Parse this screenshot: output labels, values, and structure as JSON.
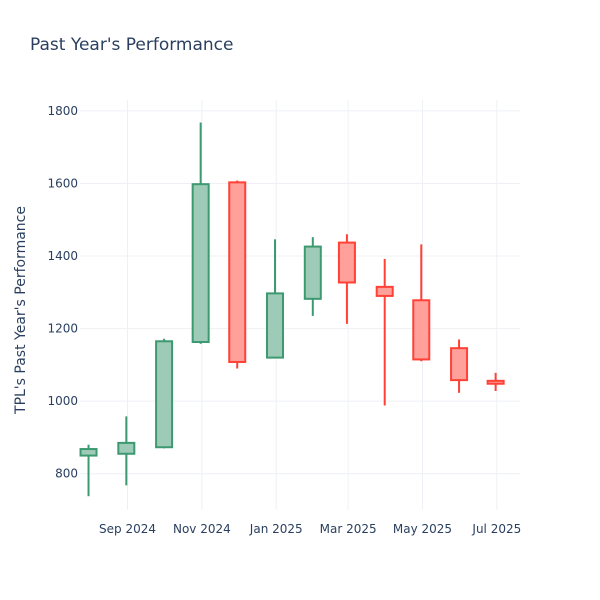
{
  "chart_data": {
    "type": "candlestick",
    "title": "Past Year's Performance",
    "xlabel": "",
    "ylabel": "TPL's Past Year's Performance",
    "ylim": [
      700,
      1830
    ],
    "yticks": [
      800,
      1000,
      1200,
      1400,
      1600,
      1800
    ],
    "xticks": [
      {
        "date": "2024-09-01",
        "label": "Sep 2024"
      },
      {
        "date": "2024-11-01",
        "label": "Nov 2024"
      },
      {
        "date": "2025-01-01",
        "label": "Jan 2025"
      },
      {
        "date": "2025-03-01",
        "label": "Mar 2025"
      },
      {
        "date": "2025-05-01",
        "label": "May 2025"
      },
      {
        "date": "2025-07-01",
        "label": "Jul 2025"
      }
    ],
    "xlim": [
      "2024-07-24",
      "2025-07-20"
    ],
    "grid": true,
    "increasing_color": "#3d9970",
    "increasing_fill": "#9ecbb7",
    "decreasing_color": "#ff4136",
    "decreasing_fill": "#ffa09b",
    "candles": [
      {
        "date": "2024-07-31",
        "open": 850,
        "high": 880,
        "low": 738,
        "close": 868
      },
      {
        "date": "2024-08-31",
        "open": 855,
        "high": 958,
        "low": 768,
        "close": 885
      },
      {
        "date": "2024-10-01",
        "open": 873,
        "high": 1172,
        "low": 870,
        "close": 1165
      },
      {
        "date": "2024-10-31",
        "open": 1163,
        "high": 1768,
        "low": 1158,
        "close": 1598
      },
      {
        "date": "2024-11-30",
        "open": 1603,
        "high": 1608,
        "low": 1090,
        "close": 1108
      },
      {
        "date": "2024-12-31",
        "open": 1120,
        "high": 1446,
        "low": 1120,
        "close": 1297
      },
      {
        "date": "2025-01-31",
        "open": 1282,
        "high": 1452,
        "low": 1235,
        "close": 1426
      },
      {
        "date": "2025-02-28",
        "open": 1437,
        "high": 1460,
        "low": 1213,
        "close": 1327
      },
      {
        "date": "2025-03-31",
        "open": 1315,
        "high": 1392,
        "low": 988,
        "close": 1290
      },
      {
        "date": "2025-04-30",
        "open": 1278,
        "high": 1432,
        "low": 1110,
        "close": 1115
      },
      {
        "date": "2025-05-31",
        "open": 1146,
        "high": 1170,
        "low": 1023,
        "close": 1058
      },
      {
        "date": "2025-06-30",
        "open": 1056,
        "high": 1078,
        "low": 1028,
        "close": 1048
      }
    ]
  }
}
